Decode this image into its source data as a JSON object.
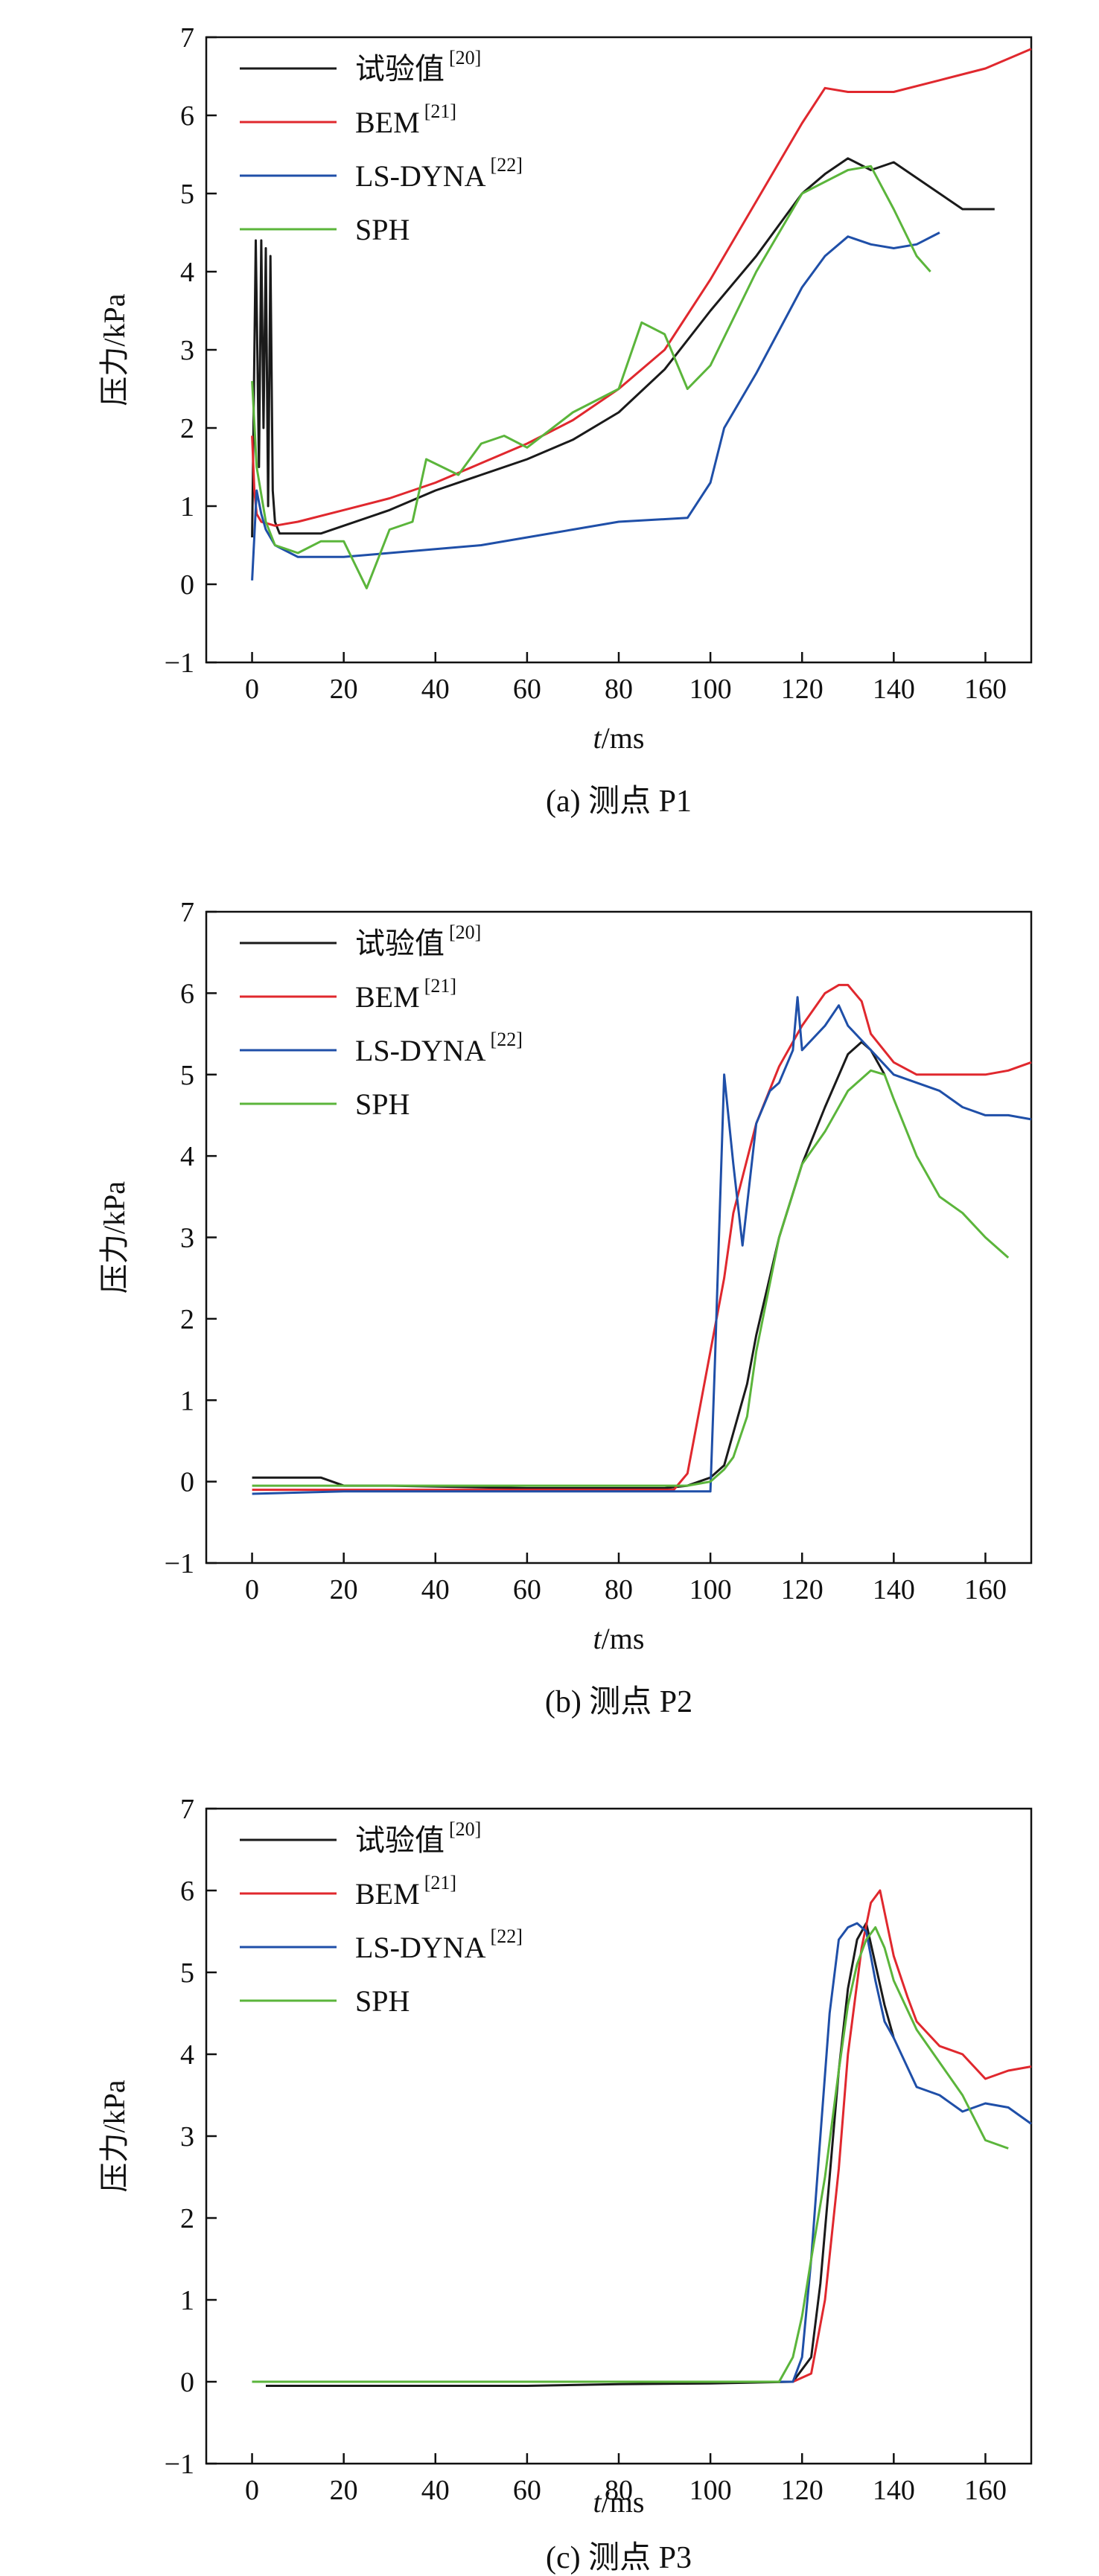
{
  "chart_data": [
    {
      "type": "line",
      "caption": "(a) 测点 P1",
      "xlabel_italic": "t",
      "xlabel_unit": "/ms",
      "ylabel": "压力/kPa",
      "xlim": [
        -10,
        170
      ],
      "ylim": [
        -1,
        7
      ],
      "xticks": [
        0,
        20,
        40,
        60,
        80,
        100,
        120,
        140,
        160
      ],
      "yticks": [
        -1,
        0,
        1,
        2,
        3,
        4,
        5,
        6,
        7
      ],
      "legend": "top-left",
      "grid": false,
      "series": [
        {
          "name": "试验值",
          "ref": "[20]",
          "color": "#1a1a1a",
          "x": [
            0,
            0.8,
            1.5,
            2,
            2.5,
            3,
            3.5,
            4,
            4.5,
            5,
            6,
            10,
            15,
            20,
            30,
            40,
            50,
            60,
            70,
            80,
            90,
            100,
            110,
            120,
            125,
            130,
            135,
            140,
            145,
            150,
            155,
            162
          ],
          "y": [
            0.6,
            4.4,
            1.5,
            4.4,
            2,
            4.3,
            1,
            4.2,
            1.2,
            0.8,
            0.65,
            0.65,
            0.65,
            0.75,
            0.95,
            1.2,
            1.4,
            1.6,
            1.85,
            2.2,
            2.75,
            3.5,
            4.2,
            5.0,
            5.25,
            5.45,
            5.3,
            5.4,
            5.2,
            5.0,
            4.8,
            4.8
          ]
        },
        {
          "name": "BEM",
          "ref": "[21]",
          "color": "#e0282e",
          "x": [
            0,
            0.5,
            1,
            2,
            5,
            10,
            20,
            30,
            40,
            50,
            60,
            70,
            80,
            90,
            100,
            110,
            120,
            125,
            130,
            140,
            150,
            160,
            170
          ],
          "y": [
            1.9,
            1.2,
            0.9,
            0.8,
            0.75,
            0.8,
            0.95,
            1.1,
            1.3,
            1.55,
            1.8,
            2.1,
            2.5,
            3.0,
            3.9,
            4.9,
            5.9,
            6.35,
            6.3,
            6.3,
            6.45,
            6.6,
            6.85
          ]
        },
        {
          "name": "LS-DYNA",
          "ref": "[22]",
          "color": "#1f4fa8",
          "x": [
            0,
            1,
            2,
            3,
            5,
            10,
            20,
            30,
            40,
            50,
            60,
            70,
            80,
            95,
            100,
            103,
            110,
            120,
            125,
            130,
            135,
            140,
            145,
            150
          ],
          "y": [
            0.05,
            1.2,
            0.9,
            0.7,
            0.5,
            0.35,
            0.35,
            0.4,
            0.45,
            0.5,
            0.6,
            0.7,
            0.8,
            0.85,
            1.3,
            2.0,
            2.7,
            3.8,
            4.2,
            4.45,
            4.35,
            4.3,
            4.35,
            4.5
          ]
        },
        {
          "name": "SPH",
          "ref": "",
          "color": "#5bb53b",
          "x": [
            0,
            1,
            3,
            5,
            10,
            15,
            20,
            25,
            30,
            35,
            38,
            45,
            50,
            55,
            60,
            70,
            80,
            85,
            90,
            95,
            100,
            110,
            120,
            130,
            135,
            140,
            145,
            148
          ],
          "y": [
            2.6,
            1.5,
            0.8,
            0.5,
            0.4,
            0.55,
            0.55,
            -0.05,
            0.7,
            0.8,
            1.6,
            1.4,
            1.8,
            1.9,
            1.75,
            2.2,
            2.5,
            3.35,
            3.2,
            2.5,
            2.8,
            4.0,
            5.0,
            5.3,
            5.35,
            4.8,
            4.2,
            4.0
          ]
        }
      ]
    },
    {
      "type": "line",
      "caption": "(b) 测点 P2",
      "xlabel_italic": "t",
      "xlabel_unit": "/ms",
      "ylabel": "压力/kPa",
      "xlim": [
        -10,
        170
      ],
      "ylim": [
        -1,
        7
      ],
      "xticks": [
        0,
        20,
        40,
        60,
        80,
        100,
        120,
        140,
        160
      ],
      "yticks": [
        -1,
        0,
        1,
        2,
        3,
        4,
        5,
        6,
        7
      ],
      "legend": "top-left",
      "grid": false,
      "series": [
        {
          "name": "试验值",
          "ref": "[20]",
          "color": "#1a1a1a",
          "x": [
            0,
            15,
            20,
            30,
            60,
            90,
            95,
            100,
            103,
            105,
            108,
            110,
            115,
            120,
            125,
            130,
            133,
            135,
            138
          ],
          "y": [
            0.05,
            0.05,
            -0.05,
            -0.05,
            -0.08,
            -0.08,
            -0.05,
            0.05,
            0.2,
            0.6,
            1.2,
            1.8,
            3.0,
            3.9,
            4.6,
            5.25,
            5.4,
            5.3,
            5.0
          ]
        },
        {
          "name": "BEM",
          "ref": "[21]",
          "color": "#e0282e",
          "x": [
            0,
            20,
            40,
            60,
            80,
            92,
            95,
            98,
            100,
            103,
            105,
            110,
            115,
            120,
            125,
            128,
            130,
            133,
            135,
            140,
            145,
            150,
            160,
            165,
            170
          ],
          "y": [
            -0.1,
            -0.1,
            -0.1,
            -0.1,
            -0.1,
            -0.1,
            0.1,
            1.0,
            1.6,
            2.5,
            3.3,
            4.4,
            5.1,
            5.6,
            6.0,
            6.1,
            6.1,
            5.9,
            5.5,
            5.15,
            5.0,
            5.0,
            5.0,
            5.05,
            5.15
          ]
        },
        {
          "name": "LS-DYNA",
          "ref": "[22]",
          "color": "#1f4fa8",
          "x": [
            0,
            20,
            40,
            60,
            80,
            100,
            101,
            103,
            105,
            107,
            110,
            113,
            115,
            118,
            119,
            120,
            125,
            128,
            130,
            135,
            140,
            145,
            150,
            155,
            160,
            165,
            170
          ],
          "y": [
            -0.15,
            -0.12,
            -0.12,
            -0.12,
            -0.12,
            -0.12,
            1.5,
            5.0,
            3.9,
            2.9,
            4.4,
            4.8,
            4.9,
            5.3,
            5.95,
            5.3,
            5.6,
            5.85,
            5.6,
            5.3,
            5.0,
            4.9,
            4.8,
            4.6,
            4.5,
            4.5,
            4.45
          ]
        },
        {
          "name": "SPH",
          "ref": "",
          "color": "#5bb53b",
          "x": [
            0,
            20,
            40,
            60,
            80,
            95,
            100,
            103,
            105,
            108,
            110,
            115,
            120,
            125,
            130,
            135,
            138,
            140,
            145,
            150,
            155,
            160,
            165
          ],
          "y": [
            -0.05,
            -0.05,
            -0.05,
            -0.05,
            -0.05,
            -0.05,
            0,
            0.15,
            0.3,
            0.8,
            1.6,
            3.0,
            3.9,
            4.3,
            4.8,
            5.05,
            5.0,
            4.7,
            4.0,
            3.5,
            3.3,
            3.0,
            2.75
          ]
        }
      ]
    },
    {
      "type": "line",
      "caption": "(c) 测点 P3",
      "xlabel_italic": "t",
      "xlabel_unit": "/ms",
      "ylabel": "压力/kPa",
      "xlim": [
        -10,
        170
      ],
      "ylim": [
        -1,
        7
      ],
      "xticks": [
        0,
        20,
        40,
        60,
        80,
        100,
        120,
        140,
        160
      ],
      "yticks": [
        -1,
        0,
        1,
        2,
        3,
        4,
        5,
        6,
        7
      ],
      "legend": "top-left",
      "grid": false,
      "series": [
        {
          "name": "试验值",
          "ref": "[20]",
          "color": "#1a1a1a",
          "x": [
            3,
            20,
            40,
            60,
            80,
            100,
            118,
            122,
            124,
            126,
            128,
            130,
            132,
            134,
            136,
            138,
            140
          ],
          "y": [
            -0.05,
            -0.05,
            -0.05,
            -0.05,
            -0.03,
            -0.02,
            0,
            0.3,
            1.2,
            2.5,
            3.8,
            4.8,
            5.4,
            5.6,
            5.1,
            4.6,
            4.2
          ]
        },
        {
          "name": "BEM",
          "ref": "[21]",
          "color": "#e0282e",
          "x": [
            0,
            20,
            40,
            60,
            80,
            100,
            118,
            122,
            125,
            128,
            130,
            133,
            135,
            137,
            140,
            143,
            145,
            150,
            155,
            160,
            165,
            170
          ],
          "y": [
            0,
            0,
            0,
            0,
            0,
            0,
            0,
            0.1,
            1.0,
            2.6,
            4.0,
            5.3,
            5.85,
            6.0,
            5.2,
            4.7,
            4.4,
            4.1,
            4.0,
            3.7,
            3.8,
            3.85
          ]
        },
        {
          "name": "LS-DYNA",
          "ref": "[22]",
          "color": "#1f4fa8",
          "x": [
            0,
            20,
            40,
            60,
            80,
            100,
            118,
            120,
            122,
            124,
            126,
            128,
            130,
            132,
            134,
            136,
            138,
            140,
            145,
            150,
            155,
            160,
            165,
            170
          ],
          "y": [
            0,
            0,
            0,
            0,
            0,
            0,
            0,
            0.3,
            1.5,
            3.0,
            4.5,
            5.4,
            5.55,
            5.6,
            5.5,
            4.9,
            4.4,
            4.2,
            3.6,
            3.5,
            3.3,
            3.4,
            3.35,
            3.15
          ]
        },
        {
          "name": "SPH",
          "ref": "",
          "color": "#5bb53b",
          "x": [
            0,
            20,
            40,
            60,
            80,
            100,
            115,
            118,
            120,
            122,
            125,
            128,
            130,
            132,
            134,
            136,
            138,
            140,
            145,
            150,
            155,
            160,
            165
          ],
          "y": [
            0,
            0,
            0,
            0,
            0,
            0,
            0,
            0.3,
            0.8,
            1.5,
            2.5,
            3.8,
            4.6,
            5.1,
            5.4,
            5.55,
            5.3,
            4.9,
            4.3,
            3.9,
            3.5,
            2.95,
            2.85
          ]
        }
      ]
    }
  ]
}
